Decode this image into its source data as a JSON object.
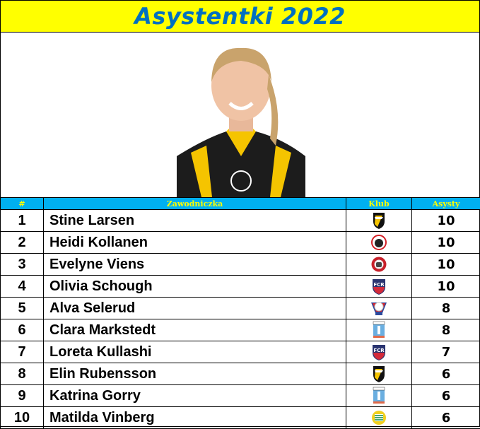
{
  "title": "Asystentki 2022",
  "headers": {
    "rank": "#",
    "player": "Zawodniczka",
    "club": "Klub",
    "assists": "Asysty"
  },
  "colors": {
    "title_bg": "#ffff00",
    "title_text": "#0070c0",
    "header_bg": "#00b0f0",
    "header_text": "#ffff00"
  },
  "rows": [
    {
      "rank": "1",
      "player": "Stine Larsen",
      "club_icon": "hacken-crest-icon",
      "assists": "10"
    },
    {
      "rank": "2",
      "player": "Heidi Kollanen",
      "club_icon": "kif-orebro-crest-icon",
      "assists": "10"
    },
    {
      "rank": "3",
      "player": "Evelyne Viens",
      "club_icon": "kristianstad-crest-icon",
      "assists": "10"
    },
    {
      "rank": "4",
      "player": "Olivia Schough",
      "club_icon": "fc-rosengard-crest-icon",
      "assists": "10"
    },
    {
      "rank": "5",
      "player": "Alva Selerud",
      "club_icon": "linkoping-crest-icon",
      "assists": "8"
    },
    {
      "rank": "6",
      "player": "Clara Markstedt",
      "club_icon": "vaxjo-crest-icon",
      "assists": "8"
    },
    {
      "rank": "7",
      "player": "Loreta Kullashi",
      "club_icon": "fc-rosengard-crest-icon",
      "assists": "7"
    },
    {
      "rank": "8",
      "player": "Elin Rubensson",
      "club_icon": "hacken-crest-icon",
      "assists": "6"
    },
    {
      "rank": "9",
      "player": "Katrina Gorry",
      "club_icon": "vaxjo-crest-icon",
      "assists": "6"
    },
    {
      "rank": "10",
      "player": "Matilda Vinberg",
      "club_icon": "hammarby-crest-icon",
      "assists": "6"
    }
  ]
}
